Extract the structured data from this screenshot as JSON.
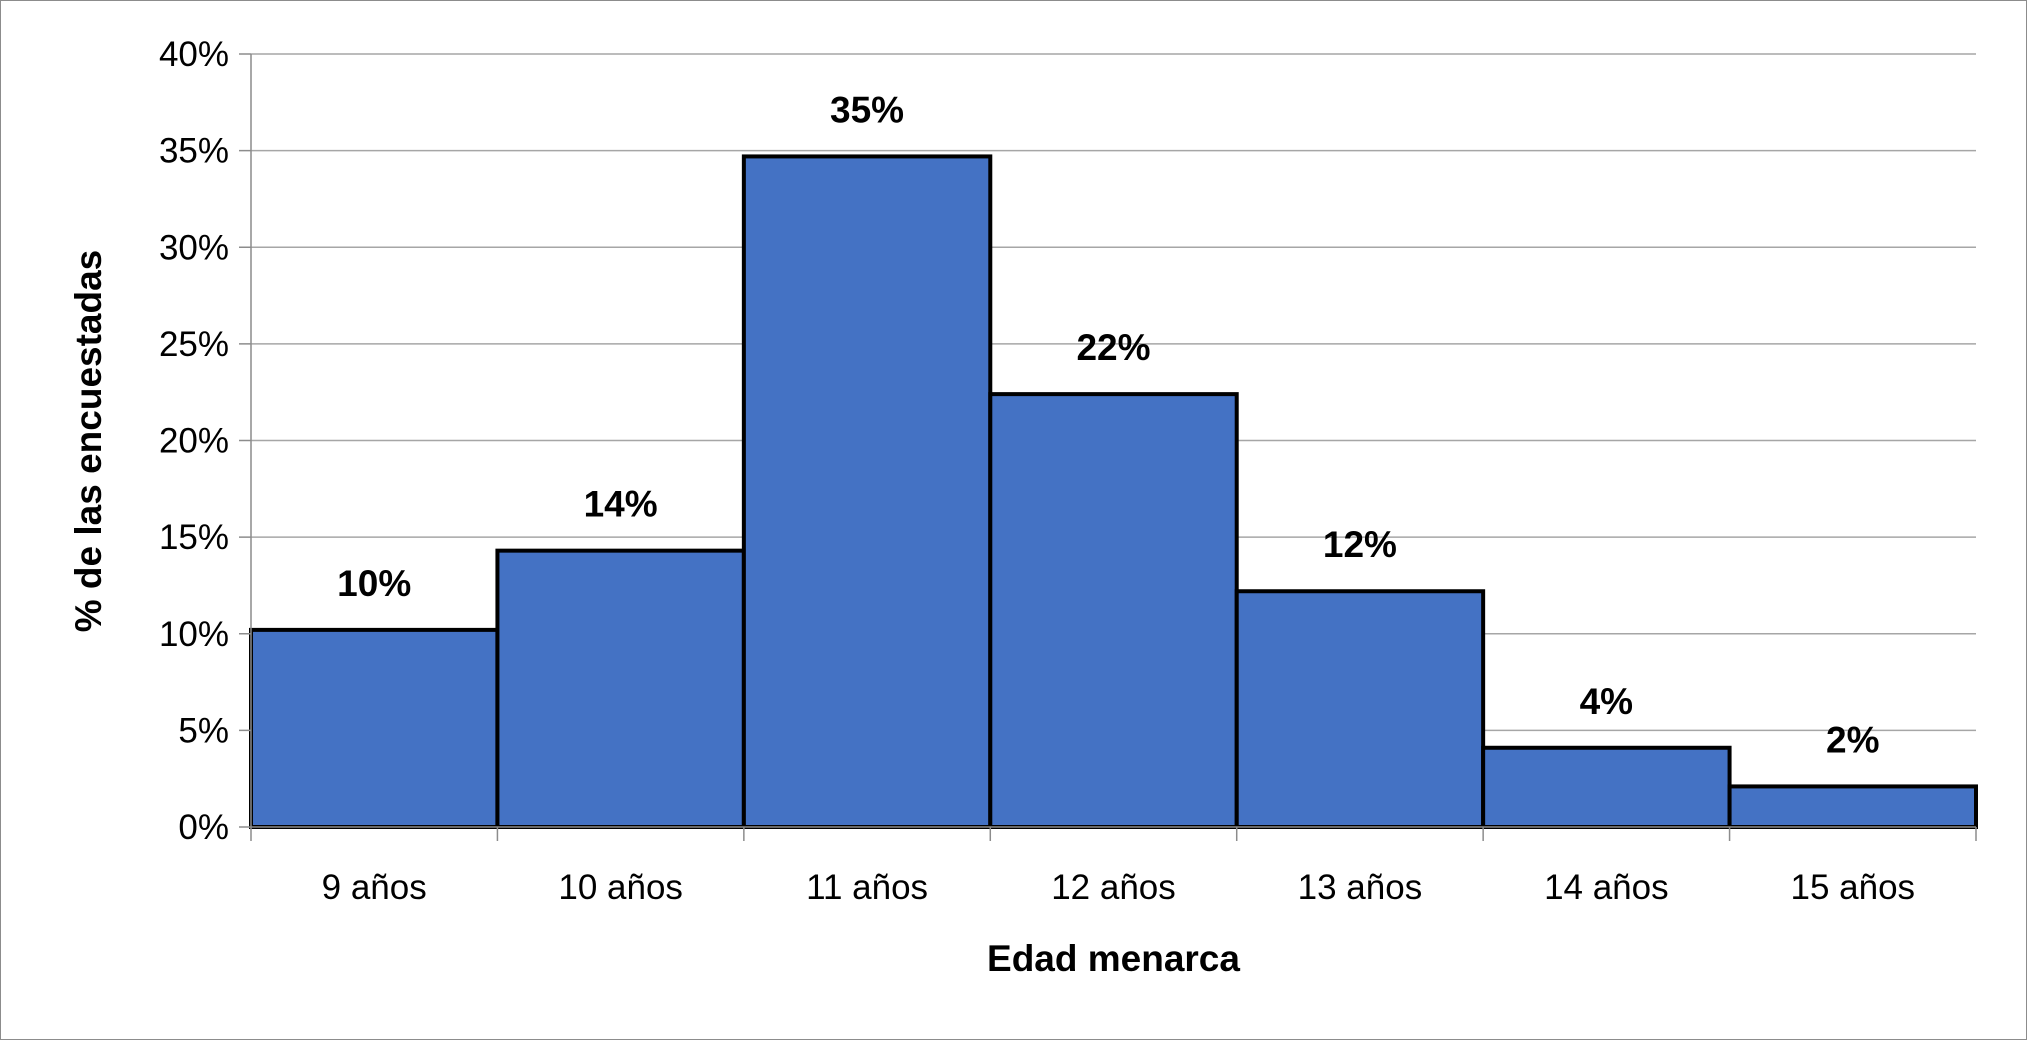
{
  "chart_data": {
    "type": "bar",
    "categories": [
      "9 años",
      "10 años",
      "11 años",
      "12 años",
      "13 años",
      "14 años",
      "15 años"
    ],
    "values": [
      10.2,
      14.3,
      34.7,
      22.4,
      12.2,
      4.1,
      2.1
    ],
    "data_labels": [
      "10%",
      "14%",
      "35%",
      "22%",
      "12%",
      "4%",
      "2%"
    ],
    "xlabel": "Edad menarca",
    "ylabel": "% de las encuestadas",
    "ylim": [
      0,
      40
    ],
    "yticks": [
      0,
      5,
      10,
      15,
      20,
      25,
      30,
      35,
      40
    ],
    "ytick_labels": [
      "0%",
      "5%",
      "10%",
      "15%",
      "20%",
      "25%",
      "30%",
      "35%",
      "40%"
    ],
    "grid": true,
    "bar_color": "#4472C4",
    "bar_edge_color": "#000000",
    "gridline_color": "#A6A6A6"
  }
}
